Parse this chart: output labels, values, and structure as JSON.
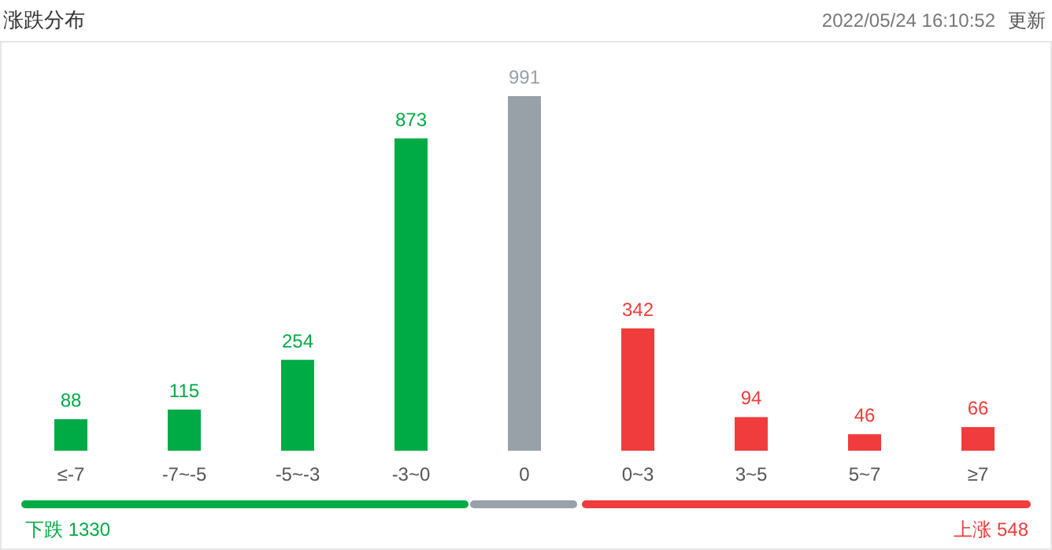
{
  "chart_data": {
    "type": "bar",
    "title": "涨跌分布",
    "categories": [
      "≤-7",
      "-7~-5",
      "-5~-3",
      "-3~0",
      "0",
      "0~3",
      "3~5",
      "5~7",
      "≥7"
    ],
    "values": [
      88,
      115,
      254,
      873,
      991,
      342,
      94,
      46,
      66
    ],
    "colors": [
      "#00ab45",
      "#00ab45",
      "#00ab45",
      "#00ab45",
      "#98a0a8",
      "#f03c3c",
      "#f03c3c",
      "#f03c3c",
      "#f03c3c"
    ],
    "data_labels": true,
    "annotations": [
      "2022/05/24 16:10:52",
      "更新",
      "下跌 1330",
      "上涨 548"
    ]
  }
}
